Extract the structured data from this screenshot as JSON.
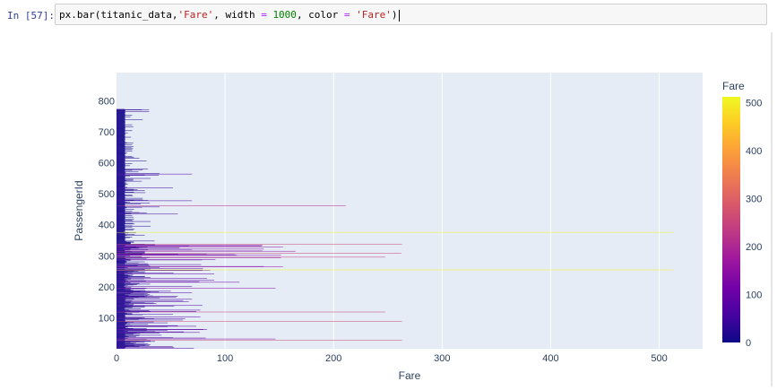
{
  "cell": {
    "prompt": "In [57]:",
    "code_tokens": [
      {
        "t": "px.bar(titanic_data,",
        "c": "plain"
      },
      {
        "t": "'Fare'",
        "c": "str"
      },
      {
        "t": ", width ",
        "c": "plain"
      },
      {
        "t": "=",
        "c": "op"
      },
      {
        "t": " ",
        "c": "plain"
      },
      {
        "t": "1000",
        "c": "num"
      },
      {
        "t": ", color ",
        "c": "plain"
      },
      {
        "t": "=",
        "c": "op"
      },
      {
        "t": " ",
        "c": "plain"
      },
      {
        "t": "'Fare'",
        "c": "str"
      },
      {
        "t": ")",
        "c": "plain"
      }
    ]
  },
  "chart_data": {
    "type": "bar",
    "orientation": "horizontal",
    "xlabel": "Fare",
    "ylabel": "PassengerId",
    "xlim": [
      0,
      540
    ],
    "ylim": [
      0,
      891
    ],
    "x_ticks": [
      "0",
      "100",
      "200",
      "300",
      "400",
      "500"
    ],
    "y_ticks": [
      "100",
      "200",
      "300",
      "400",
      "500",
      "600",
      "700",
      "800"
    ],
    "colorbar": {
      "title": "Fare",
      "range": [
        0,
        512.33
      ],
      "ticks": [
        "0",
        "100",
        "200",
        "300",
        "400",
        "500"
      ],
      "colors": [
        "#0d0887",
        "#46039f",
        "#7201a8",
        "#9c179e",
        "#bd3786",
        "#d8576b",
        "#ed7953",
        "#fb9f3a",
        "#fdca26",
        "#f0f921"
      ]
    },
    "grid": true,
    "plot_bg": "#e5ecf6",
    "series": [
      {
        "x": [
          7.25,
          71.28,
          7.93,
          53.1,
          8.05,
          8.46,
          51.86,
          21.08,
          11.13,
          30.07,
          16.7,
          26.55,
          8.05,
          31.28,
          7.85,
          16,
          29.13,
          13,
          18,
          7.23,
          26,
          13,
          8.03,
          35.5,
          21.08,
          31.39,
          7.23,
          263,
          7.88,
          7.9,
          27.72,
          146.52,
          7.75,
          10.5,
          82.17,
          52,
          7.23,
          8.05,
          18,
          11.24,
          9.48,
          21,
          7.9,
          41.58,
          7.88,
          8.05,
          15.5,
          7.75,
          21.68,
          17.8,
          39.69,
          7.8,
          76.73,
          26,
          61.98,
          35.5,
          10.5,
          7.23,
          27.75,
          46.9,
          7.23,
          80,
          83.48,
          27.9,
          27.72,
          15.25,
          10.5,
          8.16,
          7.93,
          8.66,
          10.5,
          46.9,
          73.5,
          14.45,
          56.5,
          7.65,
          7.9,
          8.05,
          29,
          12.48,
          9,
          9.5,
          7.79,
          47.1,
          10.5,
          15.85,
          34.38,
          8.05,
          263,
          8.05,
          8.05,
          7.85,
          61.18,
          20.58,
          7.25,
          8.05,
          34.65,
          63.36,
          23,
          26,
          7.9,
          7.9,
          77.29,
          8.65,
          7.93,
          7.9,
          7.65,
          7.78,
          7.9,
          24.15,
          52,
          14.45,
          8.05,
          9.83,
          14.46,
          7.93,
          7.75,
          21,
          247.52,
          31.28,
          73.5,
          8.05,
          30.07,
          13,
          77.29,
          11.24,
          7.75,
          7.14,
          22.36,
          6.98,
          7.9,
          7.05,
          14.5,
          26,
          13,
          15.05,
          26.28,
          53.1,
          9.22,
          79.2,
          15.25,
          7.75,
          15.85,
          6.75,
          11.5,
          36.75,
          7.8,
          34.38,
          26,
          13,
          12.53,
          66.6,
          8.05,
          14.5,
          7.31,
          61.38,
          7.73,
          8.05,
          8.66,
          69.55,
          16.1,
          15.75,
          7.78,
          8.66,
          39.69,
          20.53,
          55,
          27.9,
          25.93,
          56.5,
          33.5,
          29.13,
          11.13,
          7.93,
          30.7,
          7.85,
          25.47,
          28.71,
          13,
          0,
          69.55,
          15.05,
          31.39,
          39,
          22.03,
          50,
          15.5,
          26.55,
          15.5,
          7.9,
          13,
          13,
          7.85,
          26,
          27.72,
          146.52,
          7.75,
          8.4,
          13.5,
          9.5,
          69.55,
          6.5,
          7.23,
          8.05,
          10.46,
          15.85,
          18.79,
          7.75,
          31,
          7.05,
          21,
          7.25,
          13,
          7.75,
          113.28,
          7.93,
          76.29,
          27,
          10.5,
          8.03,
          8.05,
          90,
          9.35,
          7.25,
          13,
          25.47,
          83.48,
          7.78,
          13.5,
          31.39,
          10.5,
          7.55,
          26,
          26.25,
          10.5,
          12.28,
          14.45,
          15.5,
          10.5,
          7.13,
          7.23,
          90,
          7.78,
          14.5,
          52.55,
          26,
          7.25,
          10.46,
          26.55,
          16.1,
          20.21,
          15.25,
          79.2,
          86.5,
          512.33,
          26,
          7.75,
          31.39,
          79.65,
          0,
          7.75,
          10.5,
          39.69,
          7.78,
          153.46,
          135.63,
          31,
          0,
          19.5,
          29.7,
          7.75,
          77.96,
          7.75,
          0,
          29.13,
          20.25,
          7.75,
          7.85,
          9.5,
          8.05,
          26,
          8.66,
          9.5,
          7.9,
          13,
          7.75,
          78.85,
          91.08,
          12.88,
          8.85,
          7.9,
          27.72,
          7.23,
          151.55,
          30.5,
          247.52,
          7.75,
          23.25,
          0,
          12.35,
          8.05,
          151.55,
          110.88,
          108.9,
          24,
          56.93,
          83.16,
          262.38,
          26,
          7.9,
          26.25,
          7.85,
          26,
          14,
          164.87,
          134.5,
          7.25,
          7.9,
          12.35,
          29,
          69.55,
          135.63,
          6.24,
          13,
          20.53,
          57.98,
          23.25,
          28.5,
          153.46,
          18,
          133.65,
          7.9,
          66.6,
          134.5,
          8.05,
          35.5,
          26,
          263,
          13,
          13,
          13,
          13,
          13,
          16.1,
          15.9,
          8.66,
          9.23,
          35,
          7.75,
          7.75,
          8.05,
          7.23,
          7.75,
          8.66,
          6.97,
          7.78,
          7.88,
          8.05,
          12.35,
          7.75,
          14.5,
          7.9,
          7.75,
          7.75,
          7.9,
          9.5,
          26,
          7.75,
          16.7,
          8.05,
          7.78,
          7.75,
          7.83,
          11.13,
          18,
          512.33,
          6.45,
          7.75,
          8.05,
          7.78,
          7.25,
          7.78,
          15.5,
          7.55,
          7.9,
          8.05,
          16.7,
          7.78,
          7.9,
          7.55,
          7.78,
          8.05,
          14.45,
          7.55,
          7.78,
          31.39,
          14.45,
          8.05,
          7.75,
          7.23,
          7.23,
          8.05,
          16.7,
          7.9,
          15.25,
          8.05,
          7.78,
          7.75,
          8.05,
          7.78,
          31.39,
          15.5,
          7.9,
          7.75,
          7.23,
          14.45,
          6.95,
          16.1,
          7.78,
          8.05,
          7.9,
          7.75,
          8.05,
          7.78,
          15.85,
          7.78,
          7.9,
          7.75,
          7.78,
          14.5,
          7.75,
          8.05,
          7.23,
          7.9,
          56.5,
          7.9,
          13.42,
          7.75,
          27.9,
          21,
          7.73,
          7.75,
          8.05,
          7.75,
          14.45,
          7.78,
          7.9,
          8.05,
          7.23,
          16.1,
          7.75,
          7.78,
          8.05,
          7.23,
          9.48,
          7.75,
          23.45,
          39.69,
          7.9,
          8.05,
          7.25,
          211.34,
          7.9,
          7.75,
          7.9,
          7.88,
          7.75,
          22.36,
          7.25,
          7.9,
          30.7,
          7.75,
          12.47,
          9.59,
          7.9,
          7.23,
          7.9,
          69.55,
          29.13,
          16.1,
          24.15,
          7.9,
          7.75,
          7.75,
          7.23,
          24.15,
          8.05,
          8.05,
          7.9,
          7.23,
          7.9,
          7.75,
          7.9,
          15.1,
          7.78,
          7.9,
          14.45,
          7.78,
          7.23,
          7.9,
          7.9,
          7.25,
          7.23,
          26.55,
          7.75,
          16.1,
          7.92,
          7.23,
          7.85,
          8.05,
          26,
          15.5,
          7.9,
          19.26,
          16.1,
          7.75,
          7.73,
          7.9,
          52,
          8.05,
          9.84,
          7.23,
          7.75,
          7.9,
          8.05,
          7.75,
          7.9,
          7.9,
          7.75,
          8.05,
          10.52,
          7.9,
          9.5,
          7.23,
          7.9,
          8.66,
          7.9,
          7.23,
          7.25,
          7.9,
          23.25,
          9.35,
          7.9,
          15.25,
          7.75,
          8.05,
          15.5,
          7.78,
          7.9,
          31.39,
          7.9,
          7.9,
          7.75,
          8.05,
          7.9,
          7.88,
          7.75,
          12.47,
          8.05,
          39,
          26,
          7.9,
          7.78,
          69.55,
          8.05,
          39.69,
          7.75,
          8.66,
          7.9,
          7.9,
          20.25,
          8.05,
          7.75,
          7.23,
          7.9,
          14.45,
          8.05,
          24.15,
          7.88,
          7.65,
          29,
          7.75,
          7.9,
          7.75,
          7.23,
          7.9,
          7.9,
          7.75,
          7.9,
          8.05,
          12.29,
          7.9,
          7.75,
          7.9,
          8.05,
          7.9,
          7.23,
          14.45,
          7.73,
          8.05,
          7.23,
          7.9,
          7.25,
          7.9,
          7.78,
          7.65,
          27.72,
          7.9,
          7.75,
          8.05,
          7.9,
          7.9,
          7.75,
          8.05,
          21.08,
          7.25,
          7.9,
          16.1,
          7.9,
          7.78,
          14.45,
          7.9,
          7.75,
          8.05,
          7.78,
          7.65,
          7.75,
          7.9,
          8.05,
          8.66,
          6.86,
          7.8,
          9.84,
          7.78,
          8.05,
          7.75,
          7.9,
          14.5,
          7.23,
          7.75,
          7.9,
          8.05,
          14.4,
          7.9,
          7.75,
          15.25,
          7.23,
          7.9,
          7.78,
          8.05,
          13.78,
          15.74,
          7.75,
          8.05,
          7.9,
          7.23,
          7.23,
          7.9,
          14.46,
          8.05,
          7.25,
          7.79,
          7.9,
          15.5,
          9.83,
          7.75,
          7.9,
          8.05,
          7.78,
          7.9,
          7.23,
          7.75,
          7.05,
          7.9,
          7.9,
          8.05,
          7.25,
          7.78,
          7.9,
          7.75,
          7.9,
          7.25,
          13.42,
          7.75,
          8.05,
          7.9,
          7.23,
          7.23,
          7.9,
          8.05,
          7.75,
          7.78,
          8.05,
          7.9,
          7.9,
          7.75,
          10.52,
          7.23,
          7.9,
          7.75,
          7.9,
          8.05,
          7.75,
          14.45,
          7.78,
          7.9,
          7.75,
          8.05,
          7.9,
          7.9,
          7.23,
          8.05,
          7.75,
          8.05,
          7.9,
          15.5,
          7.78,
          7.9,
          7.75,
          8.05,
          7.25,
          7.9,
          14.45,
          7.9,
          7.78,
          7.75,
          8.05,
          7.9,
          7.25,
          7.9,
          8.05,
          7.75,
          7.75,
          7.9,
          8.05,
          7.23,
          7.9,
          8.05,
          24.15,
          7.78,
          7.9,
          7.75,
          8.05,
          7.25,
          7.9,
          7.78,
          7.75,
          7.23,
          13,
          7.9,
          7.75,
          8.05,
          7.9,
          14.45,
          7.75,
          7.9,
          8.05,
          7.75,
          7.23,
          7.9,
          8.05,
          7.9,
          7.75,
          8.05,
          7.9,
          30,
          7.75,
          7.9,
          8.05,
          7.9,
          23.45,
          30,
          7.75
        ]
      }
    ]
  }
}
